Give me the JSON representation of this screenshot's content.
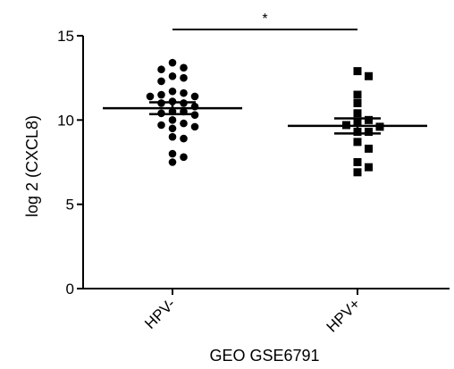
{
  "chart_data": {
    "type": "scatter",
    "title": "",
    "xlabel": "GEO GSE6791",
    "ylabel": "log 2 (CXCL8)",
    "ylim": [
      0,
      15
    ],
    "yticks": [
      0,
      5,
      10,
      15
    ],
    "categories": [
      "HPV-",
      "HPV+"
    ],
    "series": [
      {
        "category": "HPV-",
        "marker": "circle",
        "mean": 10.7,
        "sem_lower": 10.35,
        "sem_upper": 11.05,
        "values": [
          13.4,
          13.1,
          13.0,
          12.6,
          12.5,
          12.3,
          11.7,
          11.6,
          11.5,
          11.4,
          11.4,
          11.1,
          11.0,
          11.0,
          10.8,
          10.5,
          10.5,
          10.4,
          10.3,
          10.0,
          9.8,
          9.7,
          9.6,
          9.5,
          9.0,
          8.9,
          8.0,
          7.8,
          7.5
        ]
      },
      {
        "category": "HPV+",
        "marker": "square",
        "mean": 9.65,
        "sem_lower": 9.2,
        "sem_upper": 10.1,
        "values": [
          12.9,
          12.6,
          11.5,
          11.0,
          10.4,
          10.0,
          9.9,
          9.7,
          9.6,
          9.3,
          9.3,
          8.7,
          8.3,
          7.5,
          7.2,
          6.9
        ]
      }
    ],
    "significance": {
      "label": "*",
      "from": "HPV-",
      "to": "HPV+"
    },
    "grid": false,
    "legend": "none"
  }
}
